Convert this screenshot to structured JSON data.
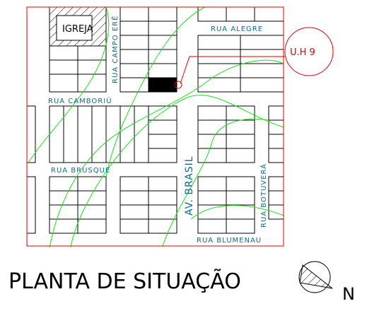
{
  "labels": {
    "church": "IGREJA",
    "street_campo_ere": "RUA CAMPO ERÊ",
    "street_alegre": "RUA ALEGRE",
    "unit": "U.H 9",
    "street_camboriu": "RUA CAMBORIÚ",
    "street_brusque": "RUA BRUSQUE",
    "avenue_brasil": "AV. BRASIL",
    "street_botuvera": "RUA BOTUVERÁ",
    "street_blumenau": "RUA BLUMENAU"
  },
  "title": "PLANTA DE SITUAÇÃO",
  "north": "N"
}
